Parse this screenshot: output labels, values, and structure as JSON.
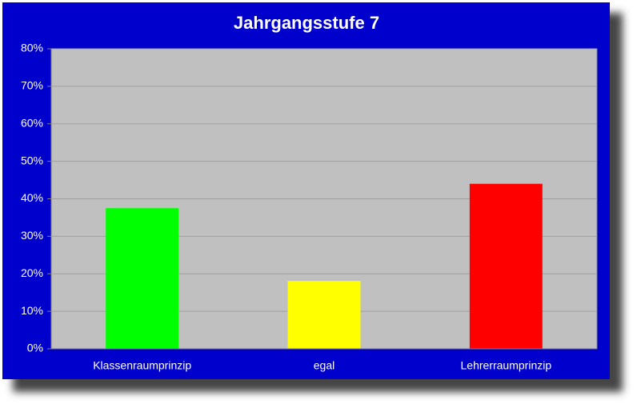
{
  "chart_data": {
    "type": "bar",
    "title": "Jahrgangsstufe 7",
    "categories": [
      "Klassenraumprinzip",
      "egal",
      "Lehrerraumprinzip"
    ],
    "values": [
      37.5,
      18.1,
      44
    ],
    "colors": [
      "#00ff00",
      "#ffff00",
      "#ff0000"
    ],
    "ylim": [
      0,
      80
    ],
    "yticks": [
      {
        "value": 0,
        "label": "0%"
      },
      {
        "value": 10,
        "label": "10%"
      },
      {
        "value": 20,
        "label": "20%"
      },
      {
        "value": 30,
        "label": "30%"
      },
      {
        "value": 40,
        "label": "40%"
      },
      {
        "value": 50,
        "label": "50%"
      },
      {
        "value": 60,
        "label": "60%"
      },
      {
        "value": 70,
        "label": "70%"
      },
      {
        "value": 80,
        "label": "80%"
      }
    ],
    "grid": true
  }
}
